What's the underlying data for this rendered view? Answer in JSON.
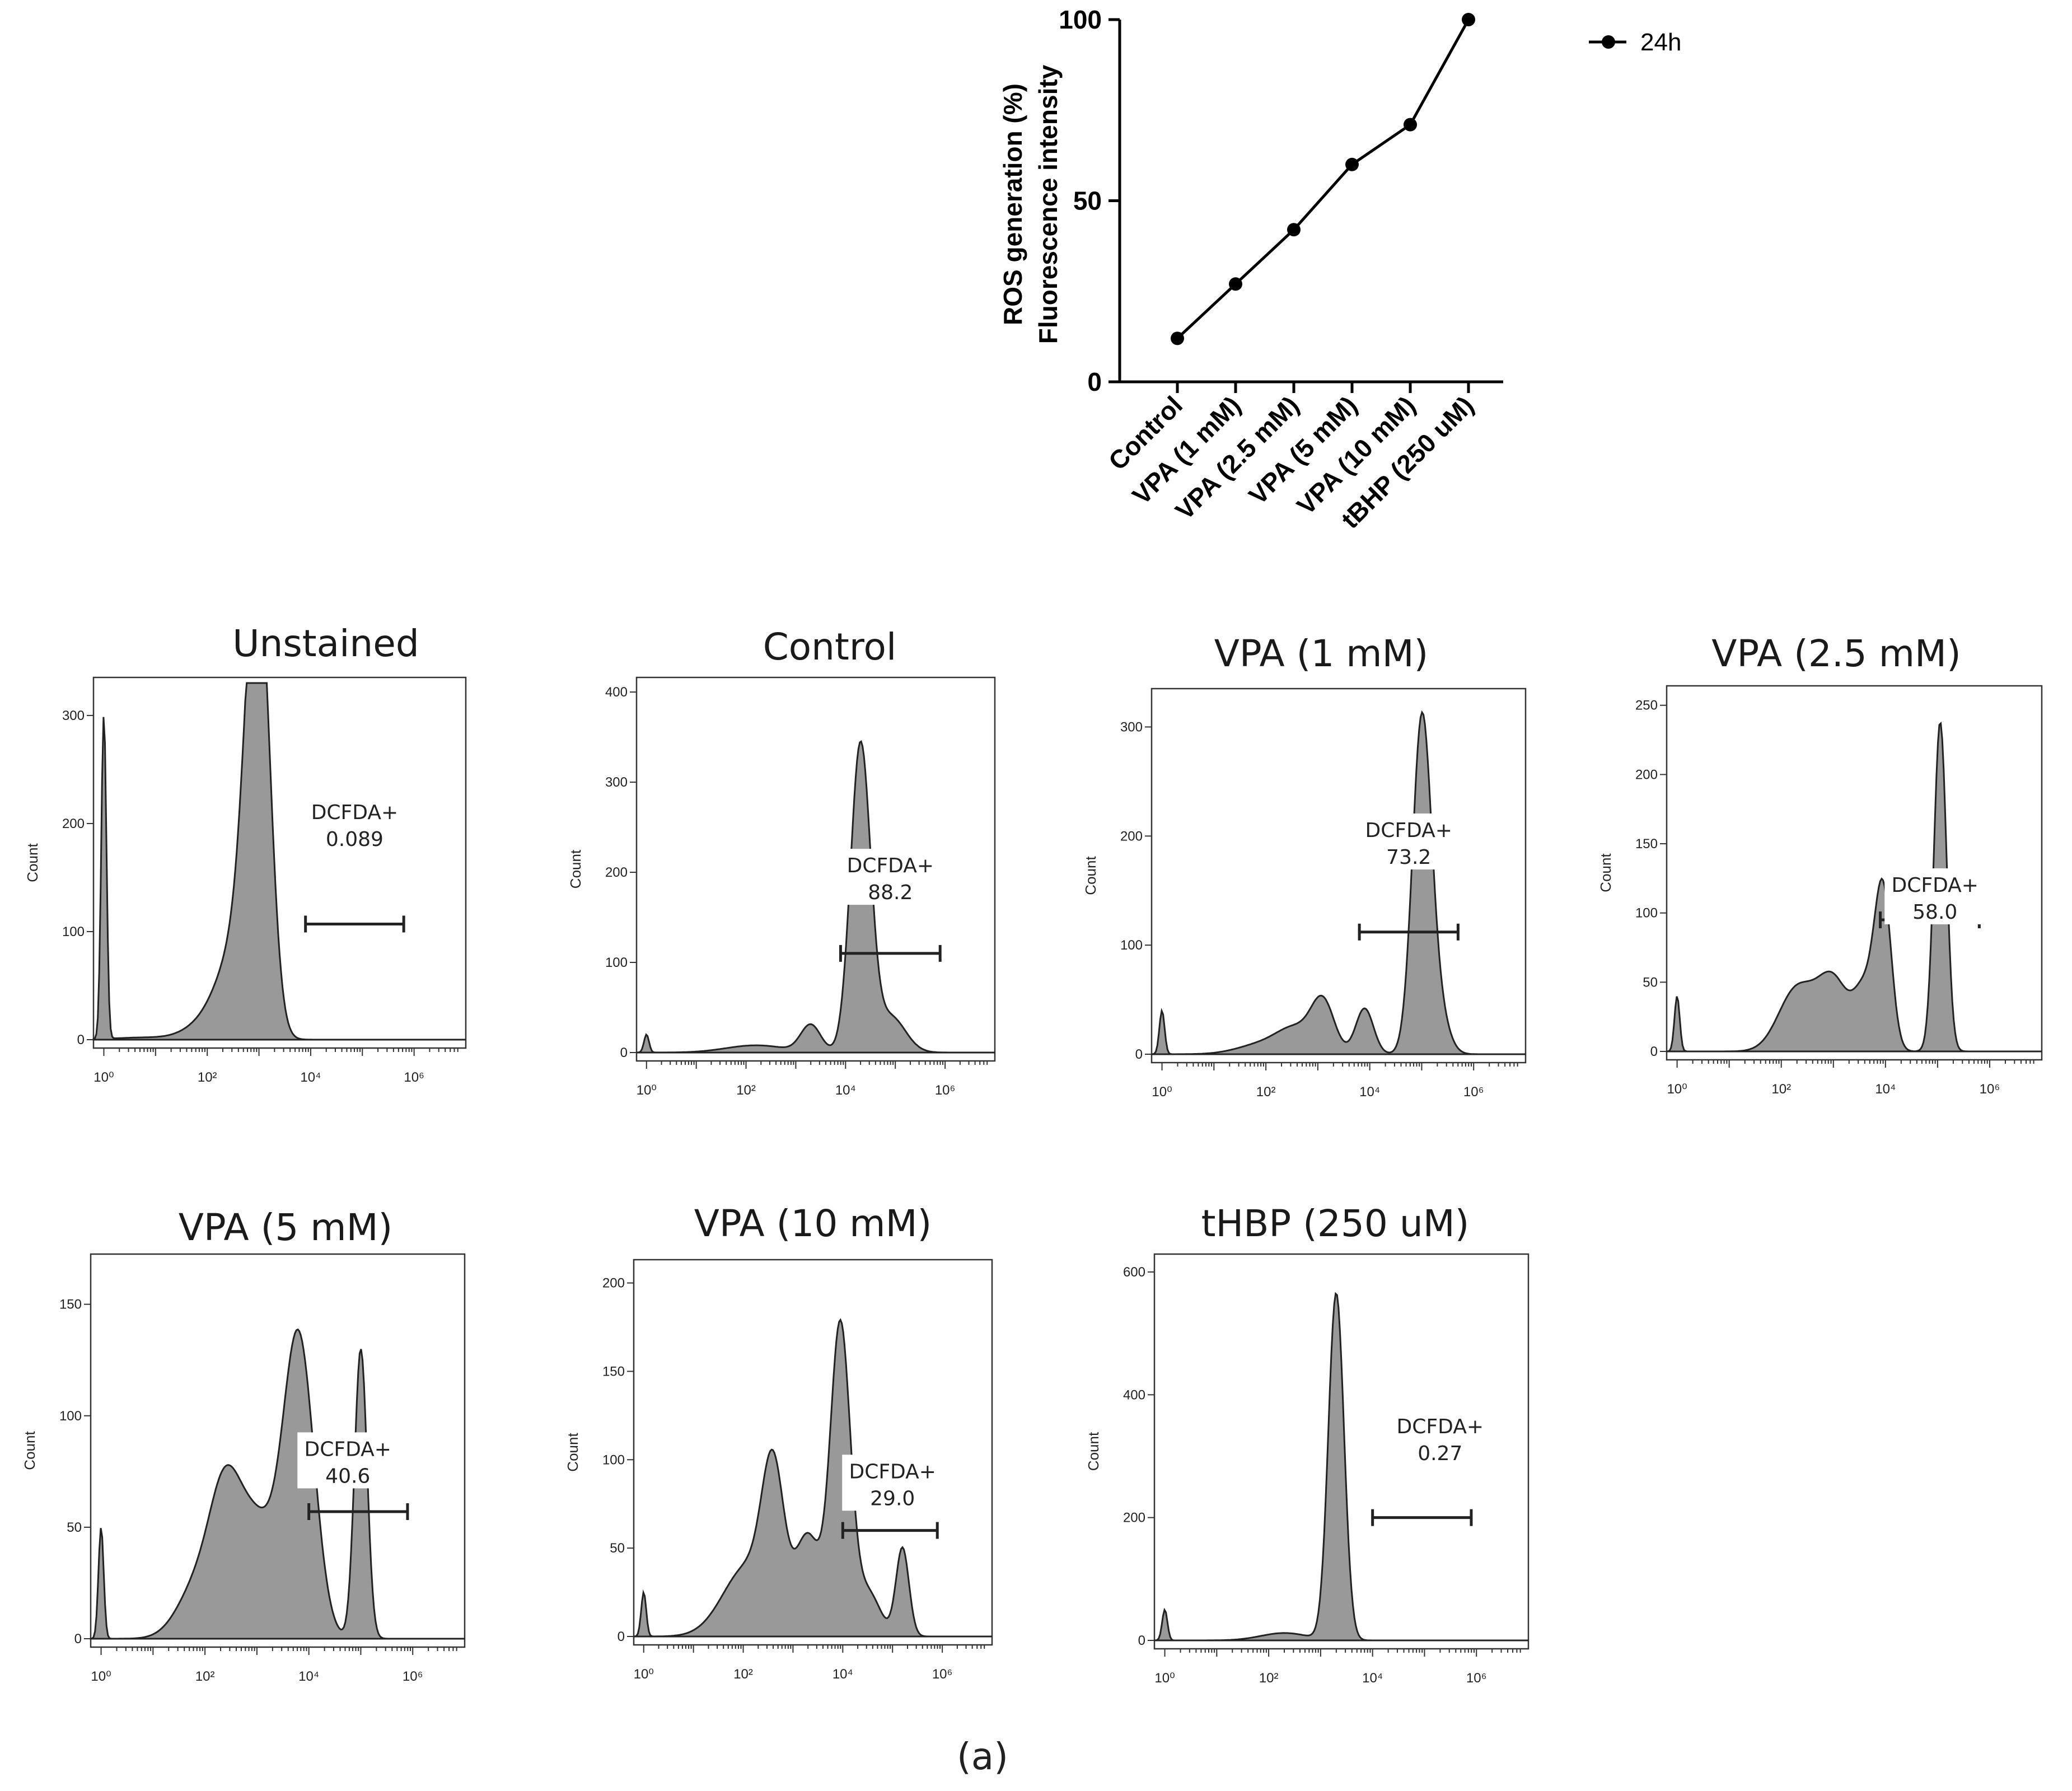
{
  "chart_data": [
    {
      "type": "line",
      "title": "",
      "xlabel": "",
      "ylabel_lines": [
        "ROS generation (%)",
        "Fluorescence intensity"
      ],
      "categories": [
        "Control",
        "VPA (1 mM)",
        "VPA (2.5 mM)",
        "VPA (5 mM)",
        "VPA (10 mM)",
        "tBHP (250 uM)"
      ],
      "series": [
        {
          "name": "24h",
          "values": [
            12,
            27,
            42,
            60,
            71,
            100
          ]
        }
      ],
      "ylim": [
        0,
        100
      ],
      "yticks": [
        0,
        50,
        100
      ],
      "legend_position": "top-right"
    },
    {
      "type": "histogram",
      "title": "Unstained",
      "ylabel": "Count",
      "xticks": [
        "10⁰",
        "10²",
        "10⁴",
        "10⁶"
      ],
      "yticks": [
        0,
        100,
        200,
        300
      ],
      "ymax": 330,
      "gate": {
        "label": "DCFDA+",
        "value": "0.089",
        "from_log": 3.9,
        "to_log": 5.8,
        "y": 107
      },
      "label_pos_log": 4.85,
      "label_y": 200,
      "peaks": [
        [
          0.0,
          300,
          0.05
        ],
        [
          0.8,
          2,
          0.6
        ],
        [
          2.0,
          15,
          0.4
        ],
        [
          2.55,
          70,
          0.35
        ],
        [
          2.9,
          130,
          0.25
        ],
        [
          3.0,
          300,
          0.22
        ]
      ]
    },
    {
      "type": "histogram",
      "title": "Control",
      "ylabel": "Count",
      "xticks": [
        "10⁰",
        "10²",
        "10⁴",
        "10⁶"
      ],
      "yticks": [
        0,
        100,
        200,
        300,
        400
      ],
      "ymax": 410,
      "gate": {
        "label": "DCFDA+",
        "value": "88.2",
        "from_log": 3.9,
        "to_log": 5.9,
        "y": 110
      },
      "label_pos_log": 4.9,
      "label_y": 195,
      "peaks": [
        [
          0.0,
          20,
          0.05
        ],
        [
          2.2,
          8,
          0.6
        ],
        [
          3.3,
          30,
          0.2
        ],
        [
          4.3,
          340,
          0.2
        ],
        [
          4.9,
          40,
          0.3
        ]
      ]
    },
    {
      "type": "histogram",
      "title": "VPA (1 mM)",
      "ylabel": "Count",
      "xticks": [
        "10⁰",
        "10²",
        "10⁴",
        "10⁶"
      ],
      "yticks": [
        0,
        100,
        200,
        300
      ],
      "ymax": 330,
      "gate": {
        "label": "DCFDA+",
        "value": "73.2",
        "from_log": 3.8,
        "to_log": 5.7,
        "y": 112
      },
      "label_pos_log": 4.75,
      "label_y": 195,
      "peaks": [
        [
          0.0,
          40,
          0.05
        ],
        [
          2.0,
          10,
          0.5
        ],
        [
          2.6,
          20,
          0.35
        ],
        [
          3.1,
          45,
          0.22
        ],
        [
          3.9,
          42,
          0.17
        ],
        [
          5.0,
          300,
          0.18
        ],
        [
          5.3,
          40,
          0.2
        ]
      ]
    },
    {
      "type": "histogram",
      "title": "VPA (2.5 mM)",
      "ylabel": "Count",
      "xticks": [
        "10⁰",
        "10²",
        "10⁴",
        "10⁶"
      ],
      "yticks": [
        0,
        50,
        100,
        150,
        200,
        250
      ],
      "ymax": 260,
      "gate": {
        "label": "DCFDA+",
        "value": "58.0",
        "from_log": 3.9,
        "to_log": 5.8,
        "y": 95
      },
      "label_pos_log": 4.95,
      "label_y": 112,
      "peaks": [
        [
          0.0,
          40,
          0.05
        ],
        [
          2.3,
          45,
          0.35
        ],
        [
          3.0,
          50,
          0.3
        ],
        [
          3.6,
          40,
          0.2
        ],
        [
          3.95,
          115,
          0.16
        ],
        [
          5.05,
          238,
          0.12
        ]
      ]
    },
    {
      "type": "histogram",
      "title": "VPA (5 mM)",
      "ylabel": "Count",
      "xticks": [
        "10⁰",
        "10²",
        "10⁴",
        "10⁶"
      ],
      "yticks": [
        0,
        50,
        100,
        150
      ],
      "ymax": 170,
      "gate": {
        "label": "DCFDA+",
        "value": "40.6",
        "from_log": 4.0,
        "to_log": 5.9,
        "y": 57
      },
      "label_pos_log": 4.75,
      "label_y": 80,
      "peaks": [
        [
          0.0,
          50,
          0.05
        ],
        [
          1.9,
          25,
          0.4
        ],
        [
          2.4,
          55,
          0.3
        ],
        [
          3.0,
          48,
          0.35
        ],
        [
          3.8,
          135,
          0.3
        ],
        [
          5.0,
          130,
          0.12
        ]
      ]
    },
    {
      "type": "histogram",
      "title": "VPA (10 mM)",
      "ylabel": "Count",
      "xticks": [
        "10⁰",
        "10²",
        "10⁴",
        "10⁶"
      ],
      "yticks": [
        0,
        50,
        100,
        150,
        200
      ],
      "ymax": 210,
      "gate": {
        "label": "DCFDA+",
        "value": "29.0",
        "from_log": 4.0,
        "to_log": 5.9,
        "y": 60
      },
      "label_pos_log": 5.0,
      "label_y": 87,
      "peaks": [
        [
          0.0,
          25,
          0.05
        ],
        [
          2.1,
          40,
          0.5
        ],
        [
          2.6,
          80,
          0.22
        ],
        [
          3.3,
          55,
          0.25
        ],
        [
          3.95,
          175,
          0.2
        ],
        [
          4.5,
          25,
          0.25
        ],
        [
          5.2,
          50,
          0.13
        ]
      ]
    },
    {
      "type": "histogram",
      "title": "tHBP (250 uM)",
      "ylabel": "Count",
      "xticks": [
        "10⁰",
        "10²",
        "10⁴",
        "10⁶"
      ],
      "yticks": [
        0,
        200,
        400,
        600
      ],
      "ymax": 620,
      "gate": {
        "label": "DCFDA+",
        "value": "0.27",
        "from_log": 4.0,
        "to_log": 5.9,
        "y": 200
      },
      "label_pos_log": 5.3,
      "label_y": 330,
      "peaks": [
        [
          0.0,
          50,
          0.05
        ],
        [
          2.3,
          12,
          0.45
        ],
        [
          3.3,
          565,
          0.15
        ]
      ]
    }
  ],
  "caption": "(a)",
  "colors": {
    "fill": "#999999",
    "stroke": "#222222",
    "line": "#000000"
  }
}
